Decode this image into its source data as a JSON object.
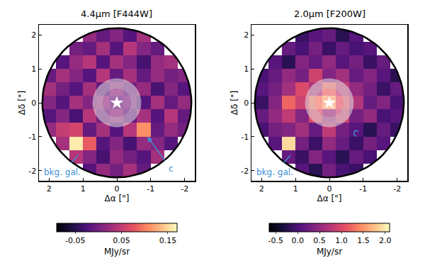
{
  "chart_data": [
    {
      "type": "heatmap",
      "title": "4.4μm [F444W]",
      "xlabel": "Δα [\"]",
      "ylabel": "Δδ [\"]",
      "xlim": [
        2.3,
        -2.3
      ],
      "ylim": [
        -2.3,
        2.3
      ],
      "xticks": [
        2,
        1,
        0,
        -1,
        -2
      ],
      "yticks": [
        -2,
        -1,
        0,
        1,
        2
      ],
      "x": [
        2,
        1.6,
        1.2,
        0.8,
        0.4,
        0,
        -0.4,
        -0.8,
        -1.2,
        -1.6,
        -2
      ],
      "y": [
        -2,
        -1.6,
        -1.2,
        -0.8,
        -0.4,
        0,
        0.4,
        0.8,
        1.2,
        1.6,
        2
      ],
      "z": [
        [
          null,
          null,
          null,
          -0.02,
          0.02,
          0.0,
          0.03,
          -0.01,
          null,
          null,
          null
        ],
        [
          null,
          null,
          0.04,
          0.01,
          -0.03,
          0.02,
          0.0,
          -0.02,
          0.03,
          null,
          null
        ],
        [
          null,
          0.03,
          0.16,
          0.08,
          -0.02,
          0.01,
          -0.03,
          0.02,
          0.01,
          -0.02,
          null
        ],
        [
          0.02,
          0.05,
          0.06,
          -0.01,
          0.03,
          -0.02,
          0.04,
          0.11,
          -0.01,
          0.02,
          0.0
        ],
        [
          -0.02,
          0.01,
          -0.03,
          0.04,
          0.0,
          0.02,
          -0.01,
          0.03,
          -0.02,
          0.04,
          -0.01
        ],
        [
          0.01,
          -0.02,
          0.03,
          0.01,
          0.02,
          0.0,
          0.01,
          -0.02,
          0.03,
          -0.01,
          0.02
        ],
        [
          0.03,
          0.0,
          -0.02,
          0.03,
          -0.01,
          0.02,
          0.0,
          0.02,
          -0.03,
          0.01,
          -0.02
        ],
        [
          -0.01,
          0.03,
          0.01,
          -0.02,
          0.04,
          -0.01,
          0.03,
          -0.01,
          0.02,
          0.0,
          0.01
        ],
        [
          null,
          -0.02,
          0.02,
          0.04,
          -0.02,
          0.03,
          0.01,
          -0.03,
          0.02,
          0.03,
          null
        ],
        [
          null,
          null,
          0.0,
          -0.01,
          0.03,
          -0.02,
          0.04,
          0.01,
          -0.01,
          null,
          null
        ],
        [
          null,
          null,
          null,
          0.02,
          -0.01,
          0.01,
          -0.02,
          0.03,
          null,
          null,
          null
        ]
      ],
      "colorbar": {
        "label": "MJy/sr",
        "lim": [
          -0.09,
          0.17
        ],
        "ticks": [
          -0.05,
          0.05,
          0.15
        ]
      },
      "star": {
        "x": 0,
        "y": 0,
        "marker": "star"
      },
      "annotations": [
        {
          "text": "bkg. gal.",
          "x": 1.15,
          "y": -1.55,
          "text_x": 1.6,
          "text_y": -2.05,
          "color": "#3d8fd6",
          "line_style": "line"
        },
        {
          "text": "c",
          "x": -0.9,
          "y": -1.0,
          "text_x": -1.6,
          "text_y": -1.95,
          "color": "#3d8fd6",
          "line_style": "arrow"
        }
      ]
    },
    {
      "type": "heatmap",
      "title": "2.0μm [F200W]",
      "xlabel": "Δα [\"]",
      "ylabel": "Δδ [\"]",
      "xlim": [
        2.3,
        -2.3
      ],
      "ylim": [
        -2.3,
        2.3
      ],
      "xticks": [
        2,
        1,
        0,
        -1,
        -2
      ],
      "yticks": [
        -2,
        -1,
        0,
        1,
        2
      ],
      "x": [
        2,
        1.6,
        1.2,
        0.8,
        0.4,
        0,
        -0.4,
        -0.8,
        -1.2,
        -1.6,
        -2
      ],
      "y": [
        -2,
        -1.6,
        -1.2,
        -0.8,
        -0.4,
        0,
        0.4,
        0.8,
        1.2,
        1.6,
        2
      ],
      "z": [
        [
          null,
          null,
          null,
          0.1,
          -0.2,
          0.3,
          0.0,
          -0.1,
          null,
          null,
          null
        ],
        [
          null,
          null,
          0.2,
          -0.1,
          0.4,
          0.1,
          -0.2,
          0.2,
          0.0,
          null,
          null
        ],
        [
          null,
          0.1,
          1.9,
          0.3,
          -0.1,
          0.5,
          0.2,
          -0.1,
          0.3,
          0.1,
          null
        ],
        [
          0.0,
          0.3,
          0.4,
          0.6,
          0.2,
          0.8,
          0.3,
          0.1,
          -0.2,
          0.2,
          -0.1
        ],
        [
          0.2,
          0.5,
          0.8,
          0.4,
          1.0,
          0.6,
          0.9,
          0.3,
          0.5,
          0.0,
          0.1
        ],
        [
          -0.1,
          0.4,
          1.2,
          0.9,
          1.3,
          1.6,
          1.1,
          0.7,
          0.2,
          0.4,
          0.0
        ],
        [
          0.1,
          0.3,
          0.6,
          1.0,
          0.7,
          1.2,
          0.8,
          0.5,
          0.3,
          -0.1,
          0.2
        ],
        [
          0.0,
          0.2,
          0.5,
          0.3,
          0.9,
          0.4,
          0.6,
          0.2,
          0.4,
          0.1,
          -0.2
        ],
        [
          null,
          0.1,
          -0.2,
          0.4,
          0.2,
          0.5,
          0.1,
          0.3,
          -0.1,
          0.2,
          null
        ],
        [
          null,
          null,
          0.2,
          0.0,
          0.3,
          -0.1,
          0.2,
          0.0,
          0.1,
          null,
          null
        ],
        [
          null,
          null,
          null,
          -0.1,
          0.1,
          0.2,
          -0.2,
          0.1,
          null,
          null,
          null
        ]
      ],
      "colorbar": {
        "label": "MJy/sr",
        "lim": [
          -0.65,
          2.1
        ],
        "ticks": [
          -0.5,
          {
            "value": 0,
            "label": "0.0"
          },
          0.5,
          {
            "value": 1,
            "label": "1.0"
          },
          1.5,
          {
            "value": 2,
            "label": "2.0"
          }
        ]
      },
      "star": {
        "x": 0,
        "y": 0,
        "marker": "star"
      },
      "annotations": [
        {
          "text": "bkg. gal.",
          "x": 1.15,
          "y": -1.55,
          "text_x": 1.6,
          "text_y": -2.05,
          "color": "#3d8fd6",
          "line_style": "line"
        },
        {
          "x": -0.8,
          "y": -0.9,
          "marker": "circle",
          "line_style": "dashed",
          "color": "#3d8fd6"
        }
      ]
    }
  ]
}
